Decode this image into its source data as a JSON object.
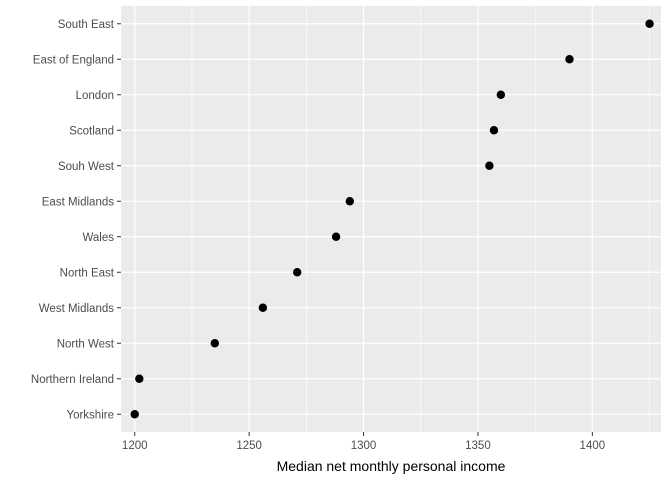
{
  "chart_data": {
    "type": "scatter",
    "title": "",
    "xlabel": "Median net monthly personal income",
    "ylabel": "",
    "xlim": [
      1194,
      1430
    ],
    "x_ticks": [
      1200,
      1250,
      1300,
      1350,
      1400
    ],
    "categories": [
      "South East",
      "East of England",
      "London",
      "Scotland",
      "Souh West",
      "East Midlands",
      "Wales",
      "North East",
      "West Midlands",
      "North West",
      "Northern Ireland",
      "Yorkshire"
    ],
    "values": [
      1425,
      1390,
      1360,
      1357,
      1355,
      1294,
      1288,
      1271,
      1256,
      1235,
      1202,
      1200
    ],
    "grid": true,
    "legend": "none",
    "colors": {
      "panel_background": "#ebebeb",
      "gridline": "#ffffff",
      "point": "#000000",
      "tick_label": "#4d4d4d",
      "tick_mark": "#333333"
    }
  }
}
